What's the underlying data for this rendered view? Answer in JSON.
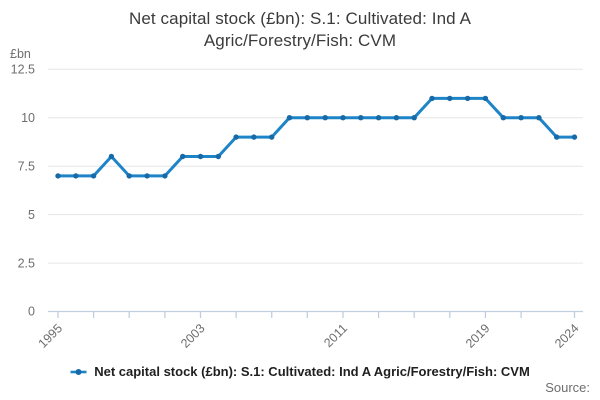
{
  "title": {
    "line1": "Net capital stock (£bn): S.1: Cultivated: Ind A",
    "line2": "Agric/Forestry/Fish: CVM"
  },
  "y_axis_unit": "£bn",
  "legend": {
    "label": "Net capital stock (£bn): S.1: Cultivated: Ind A Agric/Forestry/Fish: CVM"
  },
  "source_label": "Source:",
  "colors": {
    "line": "#1e84c8",
    "marker": "#166aa7",
    "grid": "#e6e6e6",
    "axis": "#c2cee0",
    "tick_text": "#6e6e6e",
    "title_text": "#3b3b3b",
    "legend_text": "#1f1f1f"
  },
  "chart_data": {
    "type": "line",
    "title": "Net capital stock (£bn): S.1: Cultivated: Ind A Agric/Forestry/Fish: CVM",
    "xlabel": "",
    "ylabel": "£bn",
    "x": [
      1995,
      1996,
      1997,
      1998,
      1999,
      2000,
      2001,
      2002,
      2003,
      2004,
      2005,
      2006,
      2007,
      2008,
      2009,
      2010,
      2011,
      2012,
      2013,
      2014,
      2015,
      2016,
      2017,
      2018,
      2019,
      2020,
      2021,
      2022,
      2023,
      2024
    ],
    "series": [
      {
        "name": "Net capital stock (£bn): S.1: Cultivated: Ind A Agric/Forestry/Fish: CVM",
        "values": [
          7,
          7,
          7,
          8,
          7,
          7,
          7,
          8,
          8,
          8,
          9,
          9,
          9,
          10,
          10,
          10,
          10,
          10,
          10,
          10,
          10,
          11,
          11,
          11,
          11,
          10,
          10,
          10,
          9,
          9
        ]
      }
    ],
    "ylim": [
      0,
      12.5
    ],
    "yticks": [
      0,
      2.5,
      5,
      7.5,
      10,
      12.5
    ],
    "ytick_labels": [
      "0",
      "2.5",
      "5",
      "7.5",
      "10",
      "12.5"
    ],
    "xticks": [
      1995,
      1997,
      1999,
      2001,
      2003,
      2005,
      2007,
      2009,
      2011,
      2013,
      2015,
      2017,
      2019,
      2021,
      2024
    ],
    "xtick_labels": [
      "1995",
      "2003",
      "2011",
      "2019",
      "2024"
    ],
    "grid": "horizontal",
    "legend_position": "bottom",
    "marker": "circle"
  }
}
